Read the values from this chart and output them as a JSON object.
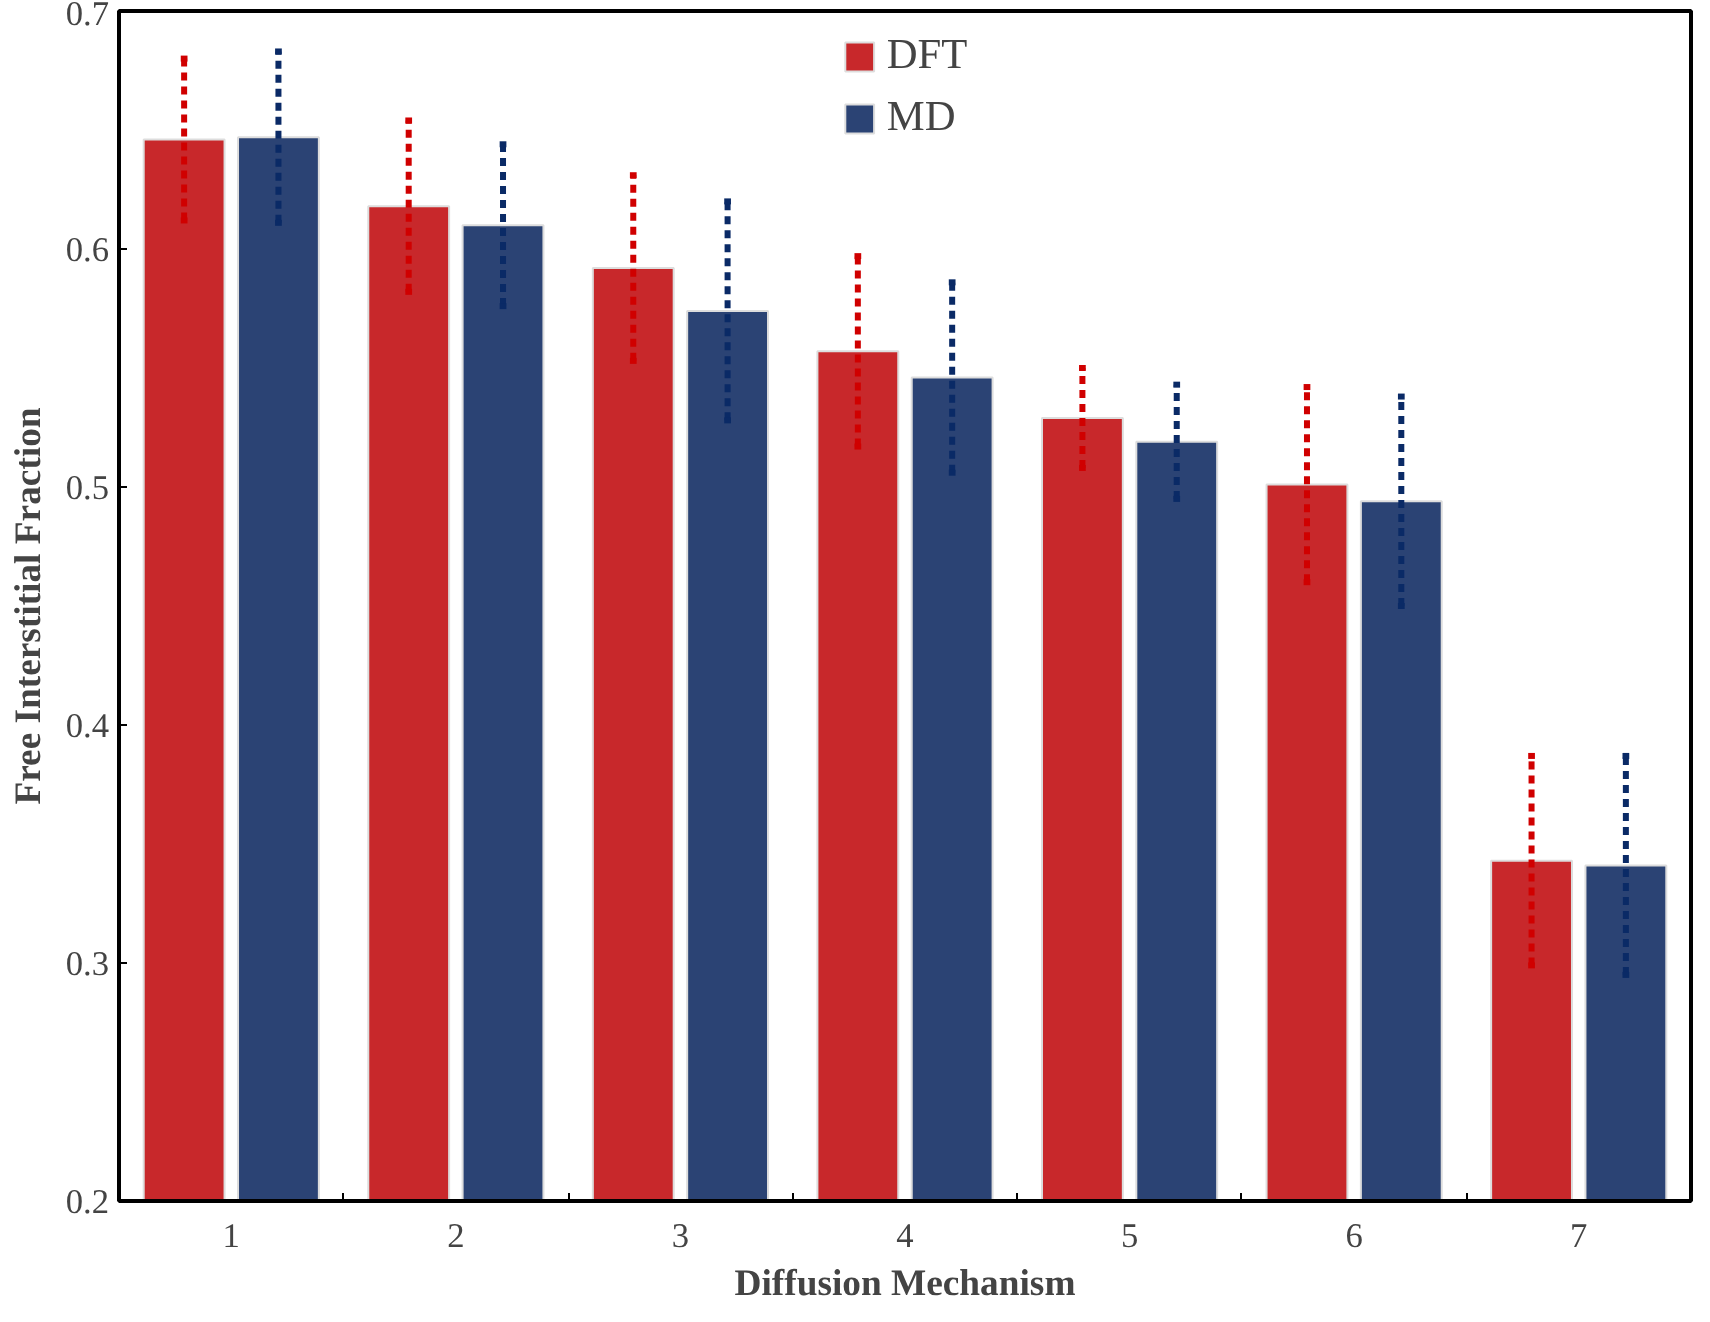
{
  "chart_data": {
    "type": "bar",
    "xlabel": "Diffusion Mechanism",
    "ylabel": "Free Interstitial Fraction",
    "categories": [
      "1",
      "2",
      "3",
      "4",
      "5",
      "6",
      "7"
    ],
    "series": [
      {
        "name": "DFT",
        "color": "#c8282b",
        "values": [
          0.646,
          0.618,
          0.592,
          0.557,
          0.529,
          0.501,
          0.343
        ],
        "errors": [
          0.034,
          0.036,
          0.039,
          0.04,
          0.021,
          0.041,
          0.044
        ]
      },
      {
        "name": "MD",
        "color": "#2b4374",
        "values": [
          0.647,
          0.61,
          0.574,
          0.546,
          0.519,
          0.494,
          0.341
        ],
        "errors": [
          0.036,
          0.034,
          0.046,
          0.04,
          0.024,
          0.044,
          0.046
        ]
      }
    ],
    "ylim": [
      0.2,
      0.7
    ],
    "yticks": [
      0.2,
      0.3,
      0.4,
      0.5,
      0.6,
      0.7
    ],
    "legend": "top",
    "grid": false,
    "line_style": "dashed"
  }
}
